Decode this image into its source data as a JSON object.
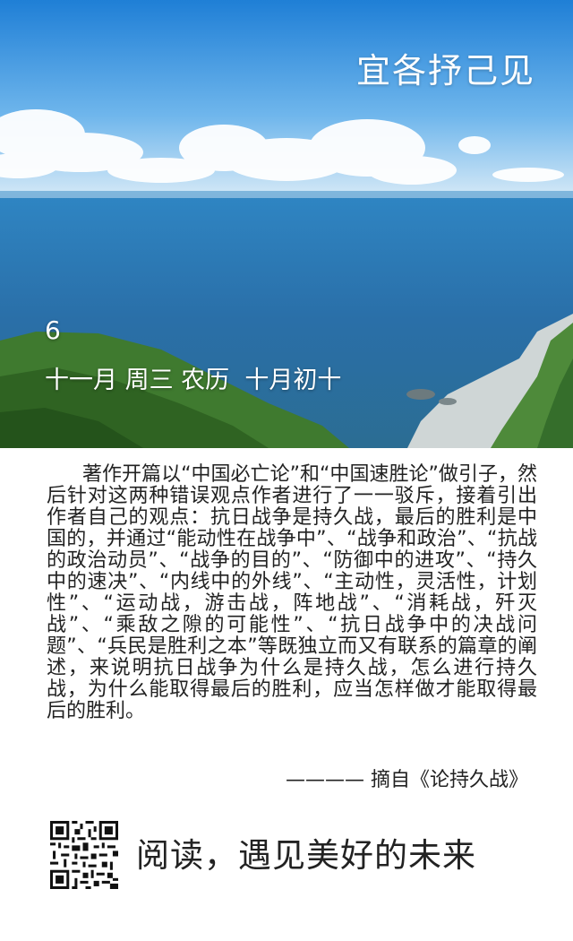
{
  "header": {
    "title": "宜各抒己见"
  },
  "date": {
    "day": "6",
    "line": "十一月 周三 农历  十月初十"
  },
  "article": {
    "text": "著作开篇以“中国必亡论”和“中国速胜论”做引子，然后针对这两种错误观点作者进行了一一驳斥，接着引出作者自己的观点：抗日战争是持久战，最后的胜利是中国的，并通过“能动性在战争中”、“战争和政治”、“抗战的政治动员”、“战争的目的”、“防御中的进攻”、“持久中的速决”、“内线中的外线”、“主动性，灵活性，计划性”、“运动战，游击战，阵地战”、“消耗战，歼灭战”、“乘敌之隙的可能性”、“抗日战争中的决战问题”、“兵民是胜利之本”等既独立而又有联系的篇章的阐述，来说明抗日战争为什么是持久战，怎么进行持久战，为什么能取得最后的胜利，应当怎样做才能取得最后的胜利。",
    "source": "———— 摘自《论持久战》"
  },
  "footer": {
    "slogan": "阅读，遇见美好的未来",
    "qr_icon": "qr-code-icon"
  }
}
